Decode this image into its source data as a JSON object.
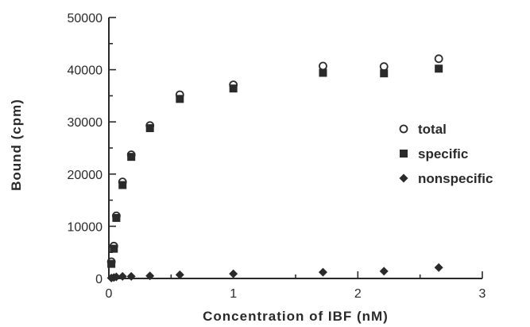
{
  "chart_data": {
    "type": "scatter",
    "xlabel": "Concentration of IBF (nM)",
    "ylabel": "Bound (cpm)",
    "xlim": [
      0,
      3
    ],
    "ylim": [
      0,
      50000
    ],
    "x_ticks": [
      0,
      1,
      2,
      3
    ],
    "x_tick_labels": [
      "0",
      "1",
      "2",
      "3"
    ],
    "y_ticks": [
      0,
      10000,
      20000,
      30000,
      40000,
      50000
    ],
    "y_tick_labels": [
      "0",
      "10000",
      "20000",
      "30000",
      "40000",
      "50000"
    ],
    "grid": false,
    "legend_position": "right",
    "series": [
      {
        "name": "total",
        "marker": "open-circle",
        "color": "#2a2a2a",
        "x": [
          0.02,
          0.04,
          0.06,
          0.11,
          0.18,
          0.33,
          0.57,
          1.0,
          1.72,
          2.21,
          2.65
        ],
        "y": [
          3200,
          6200,
          12000,
          18500,
          23700,
          29300,
          35200,
          37100,
          40700,
          40600,
          42100
        ]
      },
      {
        "name": "specific",
        "marker": "filled-square",
        "color": "#2a2a2a",
        "x": [
          0.02,
          0.04,
          0.06,
          0.11,
          0.18,
          0.33,
          0.57,
          1.0,
          1.72,
          2.21,
          2.65
        ],
        "y": [
          2800,
          5700,
          11600,
          17900,
          23300,
          28800,
          34400,
          36400,
          39400,
          39300,
          40200
        ]
      },
      {
        "name": "nonspecific",
        "marker": "filled-diamond",
        "color": "#2a2a2a",
        "x": [
          0.02,
          0.04,
          0.06,
          0.11,
          0.18,
          0.33,
          0.57,
          1.0,
          1.72,
          2.21,
          2.65
        ],
        "y": [
          100,
          200,
          300,
          400,
          400,
          500,
          700,
          900,
          1200,
          1400,
          2100
        ]
      }
    ]
  }
}
